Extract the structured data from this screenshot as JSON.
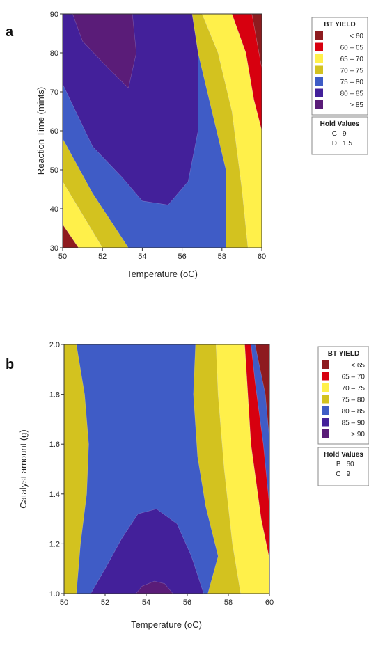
{
  "chart_data": [
    {
      "panel": "a",
      "type": "contour",
      "xlabel": "Temperature (oC)",
      "ylabel": "Reaction Time (mints)",
      "xlim": [
        50,
        60
      ],
      "ylim": [
        30,
        90
      ],
      "xticks": [
        50,
        52,
        54,
        56,
        58,
        60
      ],
      "yticks": [
        30,
        40,
        50,
        60,
        70,
        80,
        90
      ],
      "legend": {
        "title": "BT YIELD",
        "placement": "right",
        "items": [
          {
            "label": "< 60",
            "color": "#8e1b1f"
          },
          {
            "label": "60 – 65",
            "color": "#d7000f"
          },
          {
            "label": "65 – 70",
            "color": "#fff04a"
          },
          {
            "label": "70 – 75",
            "color": "#d3c21f"
          },
          {
            "label": "75 – 80",
            "color": "#3f5cc6"
          },
          {
            "label": "80 – 85",
            "color": "#43209a"
          },
          {
            "label": "> 85",
            "color": "#5a1c78"
          }
        ]
      },
      "hold_values": {
        "title": "Hold Values",
        "items": [
          {
            "label": "C",
            "value": "9"
          },
          {
            "label": "D",
            "value": "1.5"
          }
        ]
      },
      "regions": [
        {
          "band": "< 60",
          "points": [
            [
              59.5,
              90
            ],
            [
              60,
              90
            ],
            [
              60,
              76
            ]
          ]
        },
        {
          "band": "60 – 65",
          "points": [
            [
              58.5,
              90
            ],
            [
              59.5,
              90
            ],
            [
              60,
              76
            ],
            [
              60,
              60
            ],
            [
              59.6,
              68
            ],
            [
              59.2,
              80
            ]
          ]
        },
        {
          "band": "65 – 70",
          "points": [
            [
              57,
              90
            ],
            [
              58.5,
              90
            ],
            [
              59.2,
              80
            ],
            [
              59.6,
              68
            ],
            [
              60,
              60
            ],
            [
              60,
              30
            ],
            [
              59.3,
              30
            ],
            [
              59,
              45
            ],
            [
              58.5,
              65
            ],
            [
              57.8,
              80
            ]
          ]
        },
        {
          "band": "70 – 75",
          "points": [
            [
              56.5,
              90
            ],
            [
              57,
              90
            ],
            [
              57.8,
              80
            ],
            [
              58.5,
              65
            ],
            [
              59,
              45
            ],
            [
              59.3,
              30
            ],
            [
              58.2,
              30
            ],
            [
              58.2,
              50
            ],
            [
              57.5,
              65
            ],
            [
              56.8,
              80
            ]
          ]
        },
        {
          "band": "< 60",
          "points": [
            [
              50,
              30
            ],
            [
              50,
              36
            ],
            [
              50.8,
              30
            ]
          ]
        },
        {
          "band": "65 – 70",
          "points": [
            [
              50,
              36
            ],
            [
              50,
              47
            ],
            [
              52,
              30
            ],
            [
              50.8,
              30
            ]
          ]
        },
        {
          "band": "70 – 75",
          "points": [
            [
              50,
              47
            ],
            [
              50,
              58
            ],
            [
              51.5,
              44
            ],
            [
              53.3,
              30
            ],
            [
              52,
              30
            ]
          ]
        },
        {
          "band": "80 – 85",
          "points": [
            [
              50,
              90
            ],
            [
              56.5,
              90
            ],
            [
              56.8,
              80
            ],
            [
              56.8,
              60
            ],
            [
              56.3,
              47
            ],
            [
              55.3,
              41
            ],
            [
              54,
              42
            ],
            [
              53,
              48
            ],
            [
              51.5,
              56
            ],
            [
              50,
              72
            ]
          ]
        },
        {
          "band": "> 85",
          "points": [
            [
              50.5,
              90
            ],
            [
              53.5,
              90
            ],
            [
              53.7,
              80
            ],
            [
              53.3,
              71
            ],
            [
              52.3,
              76
            ],
            [
              51,
              83
            ]
          ]
        }
      ]
    },
    {
      "panel": "b",
      "type": "contour",
      "xlabel": "Temperature (oC)",
      "ylabel": "Catalyst amount (g)",
      "xlim": [
        50,
        60
      ],
      "ylim": [
        1.0,
        2.0
      ],
      "xticks": [
        50,
        52,
        54,
        56,
        58,
        60
      ],
      "yticks": [
        1.0,
        1.2,
        1.4,
        1.6,
        1.8,
        2.0
      ],
      "legend": {
        "title": "BT YIELD",
        "placement": "right",
        "items": [
          {
            "label": "< 65",
            "color": "#8e1b1f"
          },
          {
            "label": "65 – 70",
            "color": "#d7000f"
          },
          {
            "label": "70 – 75",
            "color": "#fff04a"
          },
          {
            "label": "75 – 80",
            "color": "#d3c21f"
          },
          {
            "label": "80 – 85",
            "color": "#3f5cc6"
          },
          {
            "label": "85 – 90",
            "color": "#43209a"
          },
          {
            "label": "> 90",
            "color": "#5a1c78"
          }
        ]
      },
      "hold_values": {
        "title": "Hold Values",
        "items": [
          {
            "label": "B",
            "value": "60"
          },
          {
            "label": "C",
            "value": "9"
          }
        ]
      },
      "regions": [
        {
          "band": "75 – 80",
          "points": [
            [
              50,
              1.0
            ],
            [
              50,
              2.0
            ],
            [
              50.6,
              2.0
            ],
            [
              51,
              1.8
            ],
            [
              51.2,
              1.6
            ],
            [
              51.1,
              1.4
            ],
            [
              50.8,
              1.2
            ],
            [
              50.6,
              1.0
            ]
          ]
        },
        {
          "band": "75 – 80",
          "points": [
            [
              57,
              1.0
            ],
            [
              58.6,
              1.0
            ],
            [
              58.2,
              1.2
            ],
            [
              57.8,
              1.5
            ],
            [
              57.5,
              1.8
            ],
            [
              57.4,
              2.0
            ],
            [
              56.4,
              2.0
            ],
            [
              56.3,
              1.8
            ],
            [
              56.5,
              1.55
            ],
            [
              56.9,
              1.35
            ],
            [
              57.5,
              1.15
            ]
          ]
        },
        {
          "band": "70 – 75",
          "points": [
            [
              58.6,
              1.0
            ],
            [
              60,
              1.0
            ],
            [
              60,
              1.14
            ],
            [
              59.6,
              1.3
            ],
            [
              59.1,
              1.6
            ],
            [
              58.8,
              2.0
            ],
            [
              57.4,
              2.0
            ],
            [
              57.5,
              1.8
            ],
            [
              57.8,
              1.5
            ],
            [
              58.2,
              1.2
            ]
          ]
        },
        {
          "band": "65 – 70",
          "points": [
            [
              59.1,
              2.0
            ],
            [
              58.8,
              2.0
            ],
            [
              59.1,
              1.6
            ],
            [
              59.6,
              1.3
            ],
            [
              60,
              1.14
            ],
            [
              60,
              1.35
            ],
            [
              59.7,
              1.6
            ],
            [
              59.3,
              1.85
            ]
          ]
        },
        {
          "band": "< 65",
          "points": [
            [
              59.3,
              2.0
            ],
            [
              60,
              2.0
            ],
            [
              60,
              1.62
            ],
            [
              59.8,
              1.8
            ]
          ]
        },
        {
          "band": "85 – 90",
          "points": [
            [
              51.3,
              1.0
            ],
            [
              56.8,
              1.0
            ],
            [
              56.2,
              1.15
            ],
            [
              55.5,
              1.28
            ],
            [
              54.5,
              1.34
            ],
            [
              53.6,
              1.32
            ],
            [
              52.8,
              1.22
            ],
            [
              52,
              1.1
            ]
          ]
        },
        {
          "band": "> 90",
          "points": [
            [
              53.5,
              1.0
            ],
            [
              55.3,
              1.0
            ],
            [
              54.9,
              1.04
            ],
            [
              54.4,
              1.05
            ],
            [
              53.8,
              1.03
            ]
          ]
        }
      ]
    }
  ]
}
